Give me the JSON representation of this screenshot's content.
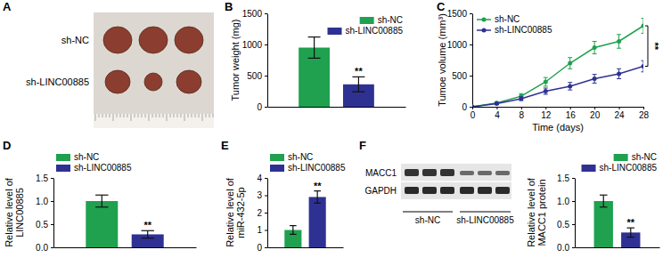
{
  "figure": {
    "photo": {
      "panel": "A",
      "rows": [
        "sh-NC",
        "sh-LINC00885"
      ]
    },
    "blot": {
      "panel": "F",
      "proteins": [
        "MACC1",
        "GAPDH"
      ],
      "groups": [
        "sh-NC",
        "sh-LINC00885"
      ]
    }
  },
  "chart_data": [
    {
      "panel": "B",
      "type": "bar",
      "categories": [
        null
      ],
      "y_label": "Tumor weight (mg)",
      "ylim": [
        0,
        1500
      ],
      "yticks": [
        0,
        500,
        1000,
        1500
      ],
      "grid": false,
      "legend": "upper right",
      "annotations": [
        "**"
      ],
      "series": [
        {
          "name": "sh-NC",
          "color": "#1fa14f",
          "values": [
            950
          ],
          "errors": [
            170
          ]
        },
        {
          "name": "sh-LINC00885",
          "color": "#2e3192",
          "values": [
            360
          ],
          "errors": [
            120
          ]
        }
      ]
    },
    {
      "panel": "C",
      "type": "line",
      "x": [
        0,
        4,
        8,
        12,
        16,
        20,
        24,
        28
      ],
      "xlim": [
        0,
        28
      ],
      "xticks": [
        0,
        4,
        8,
        12,
        16,
        20,
        24,
        28
      ],
      "x_label": "Time (days)",
      "y_label": "Tumoe volume (mm³)",
      "ylim": [
        0,
        1500
      ],
      "yticks": [
        0,
        500,
        1000,
        1500
      ],
      "grid": false,
      "legend": "upper left",
      "marker": "circle",
      "annotations": [
        "**"
      ],
      "series": [
        {
          "name": "sh-NC",
          "color": "#1fa14f",
          "values": [
            0,
            60,
            170,
            400,
            700,
            950,
            1050,
            1300
          ],
          "errors": [
            0,
            20,
            40,
            70,
            90,
            100,
            110,
            120
          ]
        },
        {
          "name": "sh-LINC00885",
          "color": "#2e3192",
          "values": [
            0,
            50,
            130,
            250,
            330,
            450,
            530,
            650
          ],
          "errors": [
            0,
            15,
            30,
            50,
            60,
            70,
            80,
            90
          ]
        }
      ]
    },
    {
      "panel": "D",
      "type": "bar",
      "categories": [
        null
      ],
      "y_label": [
        "Relative level of",
        "LINC00885"
      ],
      "ylim": [
        0,
        1.5
      ],
      "yticks": [
        {
          "value": 0,
          "label": "0.0"
        },
        0.5,
        {
          "value": 1,
          "label": "1.0"
        },
        1.5
      ],
      "grid": false,
      "legend": "upper left",
      "annotations": [
        "**"
      ],
      "series": [
        {
          "name": "sh-NC",
          "color": "#1fa14f",
          "values": [
            1.0
          ],
          "errors": [
            0.13
          ]
        },
        {
          "name": "sh-LINC00885",
          "color": "#2e3192",
          "values": [
            0.28
          ],
          "errors": [
            0.08
          ]
        }
      ]
    },
    {
      "panel": "E",
      "type": "bar",
      "categories": [
        null
      ],
      "y_label": [
        "Relative level of",
        "miR-432-5p"
      ],
      "ylim": [
        0,
        4
      ],
      "yticks": [
        0,
        1,
        2,
        3,
        4
      ],
      "grid": false,
      "legend": "upper left",
      "annotations": [
        "**"
      ],
      "series": [
        {
          "name": "sh-NC",
          "color": "#1fa14f",
          "values": [
            1.0
          ],
          "errors": [
            0.25
          ]
        },
        {
          "name": "sh-LINC00885",
          "color": "#2e3192",
          "values": [
            2.9
          ],
          "errors": [
            0.35
          ]
        }
      ]
    },
    {
      "panel": "F",
      "type": "bar",
      "categories": [
        null
      ],
      "y_label": [
        "Relative level of",
        "MACC1 protein"
      ],
      "ylim": [
        0,
        1.5
      ],
      "yticks": [
        {
          "value": 0,
          "label": "0.0"
        },
        0.5,
        {
          "value": 1,
          "label": "1.0"
        },
        1.5
      ],
      "grid": false,
      "legend": "upper right",
      "annotations": [
        "**"
      ],
      "series": [
        {
          "name": "sh-NC",
          "color": "#1fa14f",
          "values": [
            1.0
          ],
          "errors": [
            0.13
          ]
        },
        {
          "name": "sh-LINC00885",
          "color": "#2e3192",
          "values": [
            0.32
          ],
          "errors": [
            0.1
          ]
        }
      ]
    }
  ]
}
